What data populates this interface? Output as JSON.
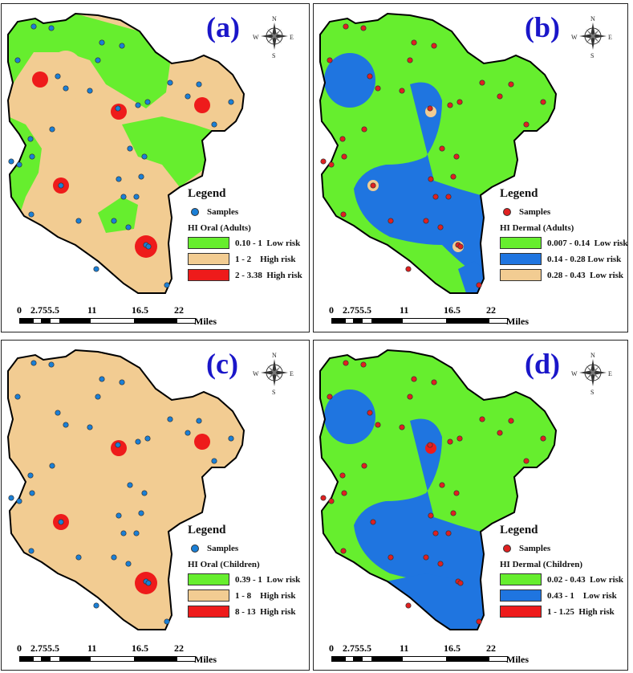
{
  "panels": [
    {
      "letter": "(a)",
      "legend_title": "Legend",
      "samples_label": "Samples",
      "sample_color": "#1a7fd6",
      "layer_title": "HI Oral (Adults)",
      "base_color": "#f2cc92",
      "mid_color": "#66ee2e",
      "classes": [
        {
          "label": "0.10 - 1  Low risk",
          "color": "#66ee2e"
        },
        {
          "label": "1 - 2    High risk",
          "color": "#f2cc92"
        },
        {
          "label": "2 - 3.38  High risk",
          "color": "#ee1b1b"
        }
      ]
    },
    {
      "letter": "(b)",
      "legend_title": "Legend",
      "samples_label": "Samples",
      "sample_color": "#e02020",
      "layer_title": "HI Dermal (Adults)",
      "base_color": "#66ee2e",
      "mid_color": "#1f75e0",
      "classes": [
        {
          "label": "0.007 - 0.14  Low risk",
          "color": "#66ee2e"
        },
        {
          "label": "0.14 - 0.28 Low risk",
          "color": "#1f75e0"
        },
        {
          "label": "0.28 - 0.43  Low risk",
          "color": "#f2cc92"
        }
      ]
    },
    {
      "letter": "(c)",
      "legend_title": "Legend",
      "samples_label": "Samples",
      "sample_color": "#1a7fd6",
      "layer_title": "HI Oral (Children)",
      "base_color": "#f2cc92",
      "mid_color": "#f2cc92",
      "classes": [
        {
          "label": "0.39 - 1  Low risk",
          "color": "#66ee2e"
        },
        {
          "label": "1 - 8    High risk",
          "color": "#f2cc92"
        },
        {
          "label": "8 - 13  High risk",
          "color": "#ee1b1b"
        }
      ]
    },
    {
      "letter": "(d)",
      "legend_title": "Legend",
      "samples_label": "Samples",
      "sample_color": "#e02020",
      "layer_title": "HI Dermal (Children)",
      "base_color": "#66ee2e",
      "mid_color": "#1f75e0",
      "classes": [
        {
          "label": "0.02 - 0.43  Low risk",
          "color": "#66ee2e"
        },
        {
          "label": "0.43 - 1    Low risk",
          "color": "#1f75e0"
        },
        {
          "label": "1 - 1.25  High risk",
          "color": "#ee1b1b"
        }
      ]
    }
  ],
  "compass": {
    "n": "N",
    "s": "S",
    "e": "E",
    "w": "W"
  },
  "scale": {
    "ticks": [
      "0",
      "2.75",
      "5.5",
      "11",
      "16.5",
      "22"
    ],
    "unit": "Miles"
  }
}
